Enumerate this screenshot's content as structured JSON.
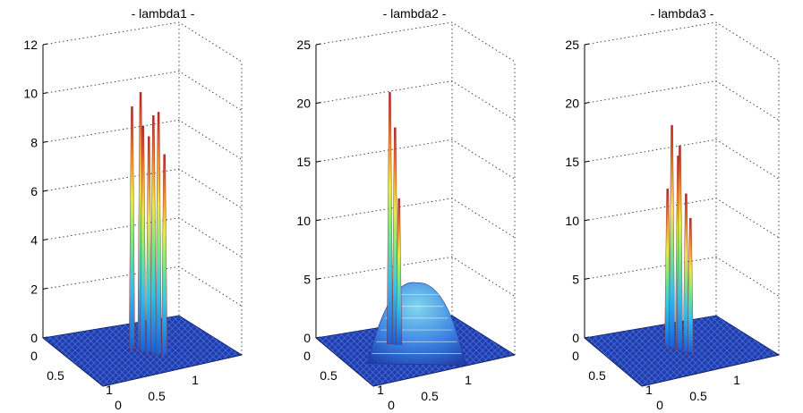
{
  "chart_data": [
    {
      "type": "surface",
      "title": "- lambda1 -",
      "zlim": [
        0,
        12
      ],
      "zticks": [
        0,
        2,
        4,
        6,
        8,
        10,
        12
      ],
      "x_ticks": [
        0,
        0.5,
        1
      ],
      "y_ticks": [
        0,
        0.5,
        1
      ],
      "grid": true,
      "colormap": "jet",
      "surface": {
        "floor_value": 0,
        "spikes": [
          {
            "x": 0.35,
            "y": 0.5,
            "z": 9.7
          },
          {
            "x": 0.38,
            "y": 0.55,
            "z": 10.3
          },
          {
            "x": 0.42,
            "y": 0.55,
            "z": 9.0
          },
          {
            "x": 0.45,
            "y": 0.58,
            "z": 8.6
          },
          {
            "x": 0.48,
            "y": 0.6,
            "z": 9.5
          },
          {
            "x": 0.52,
            "y": 0.62,
            "z": 9.7
          },
          {
            "x": 0.55,
            "y": 0.65,
            "z": 8.0
          }
        ]
      }
    },
    {
      "type": "surface",
      "title": "- lambda2 -",
      "zlim": [
        0,
        25
      ],
      "zticks": [
        0,
        5,
        10,
        15,
        20,
        25
      ],
      "x_ticks": [
        0,
        0.5,
        1
      ],
      "y_ticks": [
        0,
        0.5,
        1
      ],
      "grid": true,
      "colormap": "jet",
      "surface": {
        "floor_value": 0,
        "spikes": [
          {
            "x": 0.22,
            "y": 0.45,
            "z": 21.0
          },
          {
            "x": 0.24,
            "y": 0.48,
            "z": 18.0
          },
          {
            "x": 0.26,
            "y": 0.5,
            "z": 12.0
          }
        ],
        "dome": {
          "x_center": 0.6,
          "y_center": 0.5,
          "peak": 5.5
        }
      }
    },
    {
      "type": "surface",
      "title": "- lambda3 -",
      "zlim": [
        0,
        25
      ],
      "zticks": [
        0,
        5,
        10,
        15,
        20,
        25
      ],
      "x_ticks": [
        0,
        0.5,
        1
      ],
      "y_ticks": [
        0,
        0.5,
        1
      ],
      "grid": true,
      "colormap": "jet",
      "surface": {
        "floor_value": 0,
        "spikes": [
          {
            "x": 0.3,
            "y": 0.5,
            "z": 13.0
          },
          {
            "x": 0.33,
            "y": 0.52,
            "z": 18.5
          },
          {
            "x": 0.37,
            "y": 0.55,
            "z": 16.0
          },
          {
            "x": 0.4,
            "y": 0.55,
            "z": 17.0
          },
          {
            "x": 0.44,
            "y": 0.58,
            "z": 13.0
          },
          {
            "x": 0.47,
            "y": 0.6,
            "z": 11.0
          }
        ]
      }
    }
  ]
}
